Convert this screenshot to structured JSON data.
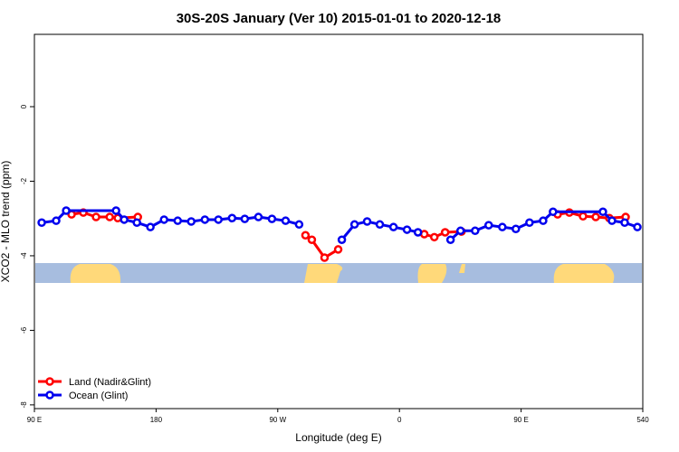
{
  "chart_data": {
    "type": "line",
    "title": "30S-20S January (Ver 10)   2015-01-01 to 2020-12-18",
    "x_label": "Longitude (deg E)",
    "y_label": "XCO2 - MLO trend (ppm)",
    "xlim": [
      90,
      540
    ],
    "ylim": [
      -8.1,
      1.94
    ],
    "xticks": [
      {
        "value": 90,
        "label": "90 E"
      },
      180,
      {
        "value": 270,
        "label": "90 W"
      },
      {
        "value": 360,
        "label": "0"
      },
      {
        "value": 450,
        "label": "90 E"
      },
      540
    ],
    "yticks": [
      -8,
      -6,
      -4,
      -2,
      0
    ],
    "legend": "bottom-left",
    "series": [
      {
        "name": "Land (Nadir&Glint)",
        "color": "#ff0000",
        "x": [
          117.5,
          126.2,
          135.6,
          145.7,
          151.7,
          166.5,
          250,
          290.5,
          295.2,
          304.6,
          314.7,
          340,
          378.4,
          385.8,
          393.8,
          405.9,
          450,
          477.0,
          485.7,
          495.8,
          505.2,
          515.2,
          527.3
        ],
        "values": [
          -2.89,
          -2.84,
          -2.96,
          -2.96,
          -2.99,
          -2.96,
          null,
          -3.45,
          -3.57,
          -4.05,
          -3.83,
          null,
          -3.42,
          -3.5,
          -3.37,
          -3.35,
          null,
          -2.89,
          -2.84,
          -2.94,
          -2.96,
          -2.99,
          -2.96
        ]
      },
      {
        "name": "Ocean (Glint)",
        "color": "#0000ee",
        "x": [
          95.4,
          106.1,
          113.5,
          150.4,
          156.4,
          165.8,
          175.8,
          185.9,
          196.0,
          206.0,
          216.1,
          226.1,
          236.2,
          245.6,
          255.7,
          265.7,
          275.8,
          285.8,
          300,
          317.4,
          326.8,
          336.1,
          345.5,
          355.6,
          365.6,
          373.7,
          385,
          397.8,
          405.2,
          416.0,
          426.0,
          436.1,
          446.1,
          456.2,
          466.3,
          473.6,
          510.5,
          517.2,
          526.6,
          536.0
        ],
        "values": [
          -3.11,
          -3.06,
          -2.79,
          -2.79,
          -3.03,
          -3.11,
          -3.23,
          -3.03,
          -3.06,
          -3.08,
          -3.03,
          -3.03,
          -2.99,
          -3.01,
          -2.96,
          -3.01,
          -3.06,
          -3.16,
          null,
          -3.57,
          -3.16,
          -3.08,
          -3.16,
          -3.23,
          -3.3,
          -3.37,
          null,
          -3.57,
          -3.33,
          -3.33,
          -3.18,
          -3.23,
          -3.28,
          -3.11,
          -3.06,
          -2.82,
          -2.82,
          -3.06,
          -3.11,
          -3.23
        ]
      }
    ]
  }
}
